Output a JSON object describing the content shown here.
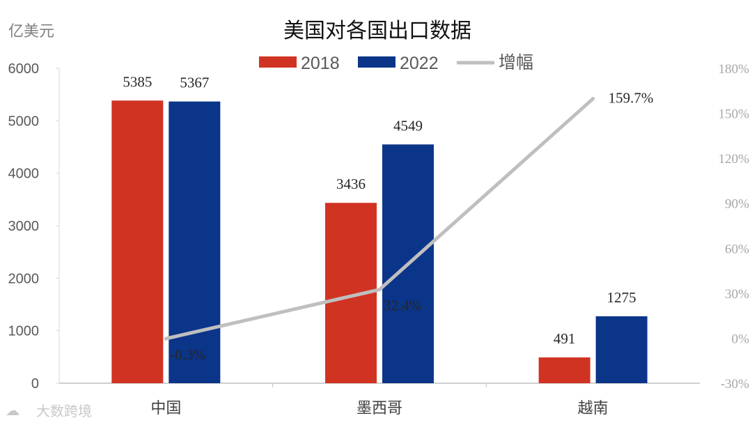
{
  "unit_label": "亿美元",
  "watermark": "大数跨境",
  "chart_data": {
    "type": "bar",
    "title": "美国对各国出口数据",
    "categories": [
      "中国",
      "墨西哥",
      "越南"
    ],
    "series": [
      {
        "name": "2018",
        "kind": "bar",
        "color": "#d13323",
        "values": [
          5385,
          3436,
          491
        ],
        "labels": [
          "5385",
          "3436",
          "491"
        ]
      },
      {
        "name": "2022",
        "kind": "bar",
        "color": "#0b3589",
        "values": [
          5367,
          4549,
          1275
        ],
        "labels": [
          "5367",
          "4549",
          "1275"
        ]
      },
      {
        "name": "增幅",
        "kind": "line",
        "axis": "secondary",
        "color": "#bfbfbf",
        "values": [
          -0.3,
          32.4,
          159.7
        ],
        "labels": [
          "-0.3%",
          "32.4%",
          "159.7%"
        ]
      }
    ],
    "ylim": [
      0,
      6000
    ],
    "yticks": [
      "0",
      "1000",
      "2000",
      "3000",
      "4000",
      "5000",
      "6000"
    ],
    "ylabel": "",
    "y2lim": [
      -30,
      180
    ],
    "y2ticks": [
      "-30%",
      "0%",
      "30%",
      "60%",
      "90%",
      "120%",
      "150%",
      "180%"
    ],
    "legend_position": "top-center",
    "grid": false
  }
}
